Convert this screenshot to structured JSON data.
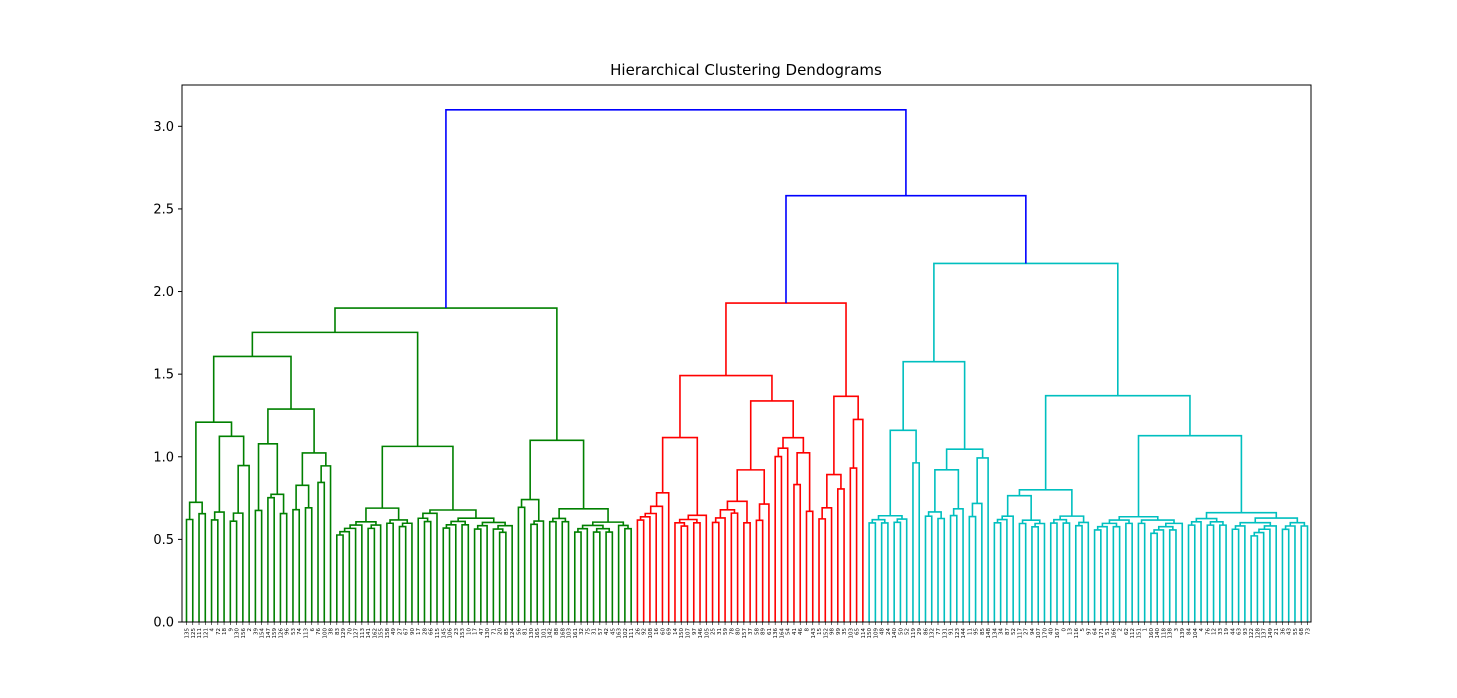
{
  "chart_data": {
    "type": "dendrogram",
    "title": "Hierarchical Clustering Dendograms",
    "xlabel": "",
    "ylabel": "",
    "ylim": [
      0,
      3.25
    ],
    "y_ticks": [
      0.0,
      0.5,
      1.0,
      1.5,
      2.0,
      2.5,
      3.0
    ],
    "y_tick_labels": [
      "0.0",
      "0.5",
      "1.0",
      "1.5",
      "2.0",
      "2.5",
      "3.0"
    ],
    "grid": false,
    "colors": {
      "above_threshold": "#0000ff",
      "cluster_1": "#008000",
      "cluster_2": "#ff0000",
      "cluster_3": "#00bfbf",
      "axes": "#000000"
    },
    "top_merges": [
      {
        "height": 3.1,
        "joins": [
          "cluster_1",
          "cluster_2+cluster_3"
        ]
      },
      {
        "height": 2.58,
        "joins": [
          "cluster_2",
          "cluster_3"
        ]
      }
    ],
    "clusters": [
      {
        "color_key": "cluster_1",
        "root_height": 1.9,
        "leaf_range": [
          0,
          71
        ]
      },
      {
        "color_key": "cluster_2",
        "root_height": 1.93,
        "leaf_range": [
          72,
          108
        ]
      },
      {
        "color_key": "cluster_3",
        "root_height": 2.17,
        "leaf_range": [
          109,
          179
        ]
      }
    ],
    "n_leaves": 180,
    "leaf_labels": [
      "135",
      "125",
      "111",
      "121",
      "4",
      "72",
      "18",
      "9",
      "130",
      "156",
      "2",
      "39",
      "154",
      "147",
      "159",
      "126",
      "96",
      "53",
      "74",
      "113",
      "6",
      "76",
      "100",
      "38",
      "83",
      "129",
      "70",
      "127",
      "113",
      "141",
      "162",
      "155",
      "158",
      "49",
      "27",
      "67",
      "90",
      "17",
      "28",
      "66",
      "115",
      "145",
      "106",
      "23",
      "153",
      "10",
      "17",
      "47",
      "130",
      "71",
      "20",
      "85",
      "124",
      "56",
      "81",
      "130",
      "165",
      "101",
      "142",
      "88",
      "168",
      "103",
      "161",
      "32",
      "75",
      "31",
      "57",
      "42",
      "45",
      "163",
      "102",
      "111",
      "26",
      "92",
      "108",
      "16",
      "60",
      "69",
      "14",
      "150",
      "107",
      "97",
      "146",
      "105",
      "25",
      "31",
      "59",
      "78",
      "80",
      "157",
      "37",
      "58",
      "89",
      "61",
      "136",
      "164",
      "54",
      "41",
      "46",
      "8",
      "143",
      "15",
      "152",
      "98",
      "99",
      "35",
      "103",
      "65",
      "114",
      "150",
      "109",
      "48",
      "24",
      "140",
      "50",
      "52",
      "119",
      "29",
      "86",
      "132",
      "77",
      "131",
      "91",
      "123",
      "144",
      "11",
      "95",
      "85",
      "148",
      "134",
      "34",
      "87",
      "52",
      "117",
      "27",
      "94",
      "107",
      "170",
      "40",
      "167",
      "0",
      "13",
      "116",
      "5",
      "97",
      "64",
      "171",
      "51",
      "166",
      "2",
      "62",
      "112",
      "151",
      "1",
      "160",
      "140",
      "118",
      "138",
      "3",
      "139",
      "84",
      "104",
      "4",
      "76",
      "12",
      "33",
      "19",
      "44",
      "63",
      "93",
      "122",
      "128",
      "137",
      "149",
      "21",
      "36",
      "43",
      "55",
      "68",
      "73"
    ]
  }
}
